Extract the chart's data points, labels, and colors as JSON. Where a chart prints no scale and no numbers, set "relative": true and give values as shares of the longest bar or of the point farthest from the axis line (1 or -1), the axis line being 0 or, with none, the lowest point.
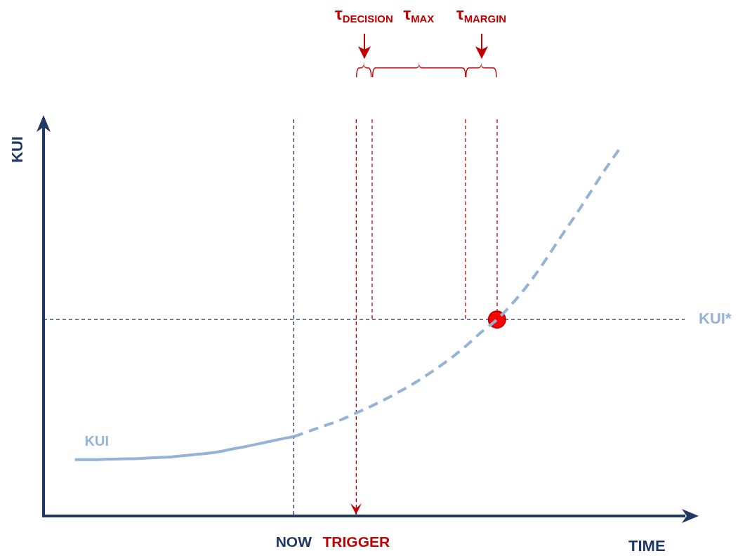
{
  "chart_data": {
    "type": "line",
    "relative": true,
    "xlabel": "TIME",
    "ylabel": "KUI",
    "legend": false,
    "grid": false,
    "categories": [
      null,
      null,
      null,
      null,
      null,
      null,
      null,
      null,
      null,
      null,
      null,
      null,
      null,
      null,
      null,
      null,
      "NOW",
      null,
      null,
      null,
      "TRIGGER",
      null,
      null,
      null,
      null,
      null,
      null,
      null,
      null,
      null,
      null,
      null,
      null,
      null,
      null,
      null,
      null,
      null,
      null,
      null,
      null,
      null
    ],
    "series": [
      {
        "name": "KUI",
        "color": "#95b3d7",
        "line_style": "solid",
        "marker": "none",
        "values": [
          null,
          null,
          0.152,
          0.152,
          0.153,
          0.154,
          0.155,
          0.157,
          0.159,
          0.163,
          0.167,
          0.172,
          0.18,
          0.188,
          0.197,
          0.206,
          0.214,
          null,
          null,
          null,
          null,
          null,
          null,
          null,
          null,
          null,
          null,
          null,
          null,
          null,
          null,
          null,
          null,
          null,
          null,
          null,
          null,
          null,
          null,
          null,
          null,
          null
        ]
      },
      {
        "color": "#95b3d7",
        "line_style": "dashed",
        "marker": "none",
        "values": [
          null,
          null,
          null,
          null,
          null,
          null,
          null,
          null,
          null,
          null,
          null,
          null,
          null,
          null,
          null,
          null,
          0.214,
          0.229,
          0.244,
          0.259,
          0.278,
          0.297,
          0.318,
          0.341,
          0.366,
          0.394,
          0.424,
          0.458,
          0.496,
          0.53,
          0.574,
          0.625,
          0.684,
          0.748,
          0.81,
          0.875,
          0.94,
          1,
          null,
          null,
          null,
          null
        ]
      },
      {
        "type": "scatter",
        "color": "#ff0000",
        "marker": "circle",
        "values": [
          null,
          null,
          null,
          null,
          null,
          null,
          null,
          null,
          null,
          null,
          null,
          null,
          null,
          null,
          null,
          null,
          null,
          null,
          null,
          null,
          null,
          null,
          null,
          null,
          null,
          null,
          null,
          null,
          null,
          0.53,
          null,
          null,
          null,
          null,
          null,
          null,
          null,
          null,
          null,
          null,
          null,
          null
        ]
      }
    ],
    "ref_lines": [
      {
        "axis": "x",
        "value": "NOW",
        "color": "#1f3864",
        "line_style": "dashed"
      },
      {
        "axis": "x",
        "value": "TRIGGER",
        "color": "#c00000",
        "line_style": "dashed"
      },
      {
        "axis": "y",
        "value": 0.53,
        "label": "KUI*",
        "color": "#1f3864",
        "line_style": "dashed"
      }
    ],
    "annotations": [
      "τ$_{DECISION}$",
      "τ$_{MAX}$",
      "τ$_{MARGIN}$"
    ]
  }
}
